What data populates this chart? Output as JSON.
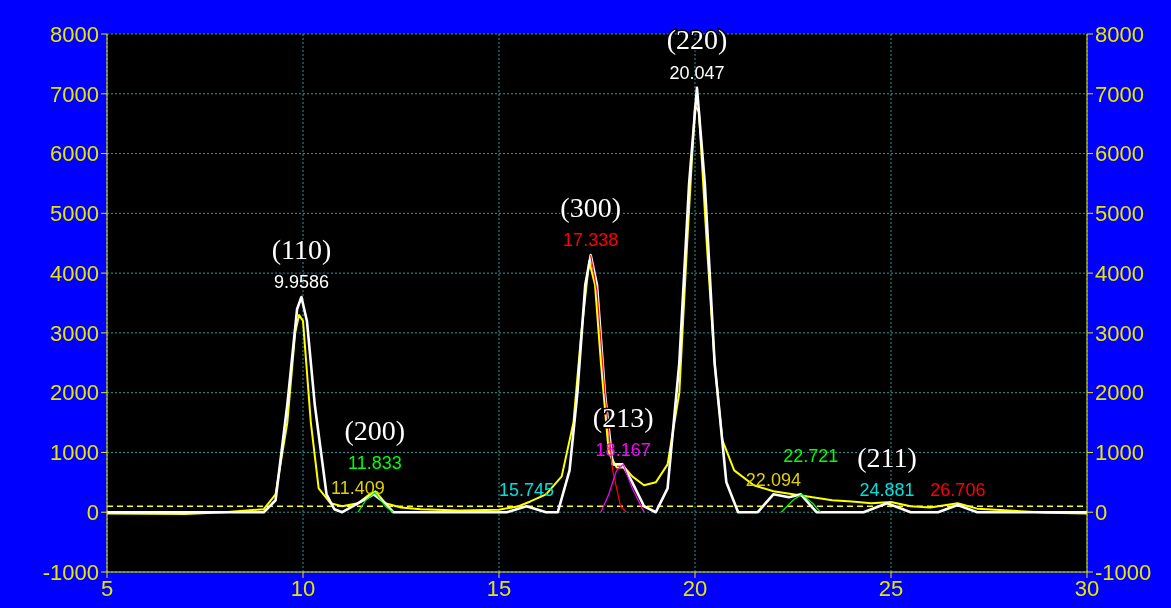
{
  "chart_data": {
    "type": "line",
    "xlim": [
      5,
      30
    ],
    "xticks": [
      5,
      10,
      15,
      20,
      25,
      30
    ],
    "ylim": [
      -1000,
      8000
    ],
    "yticks": [
      -1000,
      0,
      1000,
      2000,
      3000,
      4000,
      5000,
      6000,
      7000,
      8000
    ],
    "y2lim": [
      -1000,
      8000
    ],
    "y2ticks": [
      -1000,
      0,
      1000,
      2000,
      3000,
      4000,
      5000,
      6000,
      7000,
      8000
    ],
    "grid": true,
    "marker": "none",
    "series": [
      {
        "color": "#ffff00",
        "x": [
          5,
          7,
          8,
          9,
          9.3,
          9.6,
          9.8,
          9.9,
          10.0,
          10.2,
          10.4,
          10.7,
          11.0,
          11.4,
          11.7,
          11.85,
          12.1,
          12.5,
          13,
          14,
          15,
          15.5,
          15.8,
          16.2,
          16.6,
          16.9,
          17.1,
          17.3,
          17.45,
          17.6,
          17.8,
          18.0,
          18.2,
          18.4,
          18.7,
          19.0,
          19.3,
          19.6,
          19.8,
          20.0,
          20.1,
          20.3,
          20.5,
          20.7,
          21.0,
          21.5,
          22.0,
          22.5,
          23.0,
          23.5,
          24.0,
          24.5,
          25.0,
          25.5,
          26.0,
          26.7,
          27.2,
          28,
          29,
          30
        ],
        "values": [
          -20,
          -30,
          0,
          50,
          300,
          1500,
          3000,
          3300,
          3200,
          1500,
          400,
          150,
          100,
          150,
          300,
          350,
          150,
          80,
          50,
          30,
          40,
          100,
          180,
          300,
          600,
          1500,
          3000,
          4200,
          3800,
          2500,
          1000,
          750,
          750,
          600,
          450,
          500,
          800,
          2000,
          4500,
          6800,
          6700,
          4500,
          2500,
          1200,
          700,
          450,
          350,
          300,
          250,
          200,
          180,
          150,
          170,
          100,
          80,
          150,
          60,
          30,
          -10,
          -20
        ]
      },
      {
        "color": "#ffffff",
        "x": [
          5,
          9,
          9.3,
          9.6,
          9.85,
          9.96,
          10.1,
          10.3,
          10.6,
          10.8,
          11.0,
          11.4,
          11.8,
          12.1,
          12.3,
          15.2,
          15.7,
          16.2,
          16.5,
          16.8,
          17.0,
          17.2,
          17.34,
          17.5,
          17.7,
          17.9,
          18.15,
          18.4,
          18.7,
          19.0,
          19.3,
          19.6,
          19.85,
          20.05,
          20.25,
          20.5,
          20.8,
          21.1,
          21.6,
          22.0,
          22.4,
          22.7,
          23.1,
          24.3,
          24.9,
          25.5,
          26.2,
          26.7,
          27.2,
          30
        ],
        "values": [
          0,
          0,
          200,
          1800,
          3400,
          3600,
          3200,
          1800,
          300,
          50,
          0,
          150,
          300,
          150,
          0,
          0,
          100,
          0,
          0,
          700,
          2000,
          3800,
          4300,
          3800,
          2000,
          800,
          800,
          500,
          100,
          0,
          400,
          2500,
          5500,
          7100,
          5500,
          2500,
          500,
          0,
          0,
          300,
          250,
          300,
          0,
          0,
          150,
          0,
          0,
          120,
          0,
          0
        ]
      },
      {
        "color": "#ff0000",
        "x": [
          17.338,
          17.5,
          17.7,
          17.9,
          18.1,
          18.25
        ],
        "values": [
          4300,
          3700,
          2000,
          700,
          100,
          0
        ]
      },
      {
        "color": "#ff00ff",
        "x": [
          17.6,
          17.8,
          18.0,
          18.167,
          18.4,
          18.7
        ],
        "values": [
          0,
          300,
          700,
          800,
          400,
          0
        ]
      },
      {
        "color": "#00ff00",
        "x": [
          11.4,
          11.6,
          11.833,
          12.1,
          12.3
        ],
        "values": [
          0,
          200,
          330,
          100,
          0
        ]
      },
      {
        "color": "#00ff00",
        "x": [
          22.2,
          22.5,
          22.721,
          23.0,
          23.2
        ],
        "values": [
          0,
          200,
          300,
          150,
          0
        ]
      }
    ],
    "ref_lines": [
      {
        "axis": "y",
        "value": 100,
        "color": "#ffff00",
        "line_style": "dashed"
      }
    ],
    "annotations": [
      "(110)",
      {
        "text": "9.9586",
        "x": 9.96,
        "y": 3600
      },
      "(200)",
      {
        "text": "11.833",
        "x": 11.833,
        "y": 330
      },
      {
        "text": "11.409",
        "x": 11.4,
        "y": 150
      },
      {
        "text": "15.745",
        "x": 15.7,
        "y": 100
      },
      "(300)",
      {
        "text": "17.338",
        "x": 17.338,
        "y": 4300
      },
      "(213)",
      {
        "text": "18.167",
        "x": 18.167,
        "y": 800
      },
      "(220)",
      {
        "text": "20.047",
        "x": 20.05,
        "y": 7100
      },
      {
        "text": "22.094",
        "x": 22.0,
        "y": 300
      },
      {
        "text": "22.721",
        "x": 22.721,
        "y": 300
      },
      "(211)",
      {
        "text": "24.881",
        "x": 24.9,
        "y": 150
      },
      {
        "text": "26.706",
        "x": 26.706,
        "y": 120
      }
    ]
  }
}
